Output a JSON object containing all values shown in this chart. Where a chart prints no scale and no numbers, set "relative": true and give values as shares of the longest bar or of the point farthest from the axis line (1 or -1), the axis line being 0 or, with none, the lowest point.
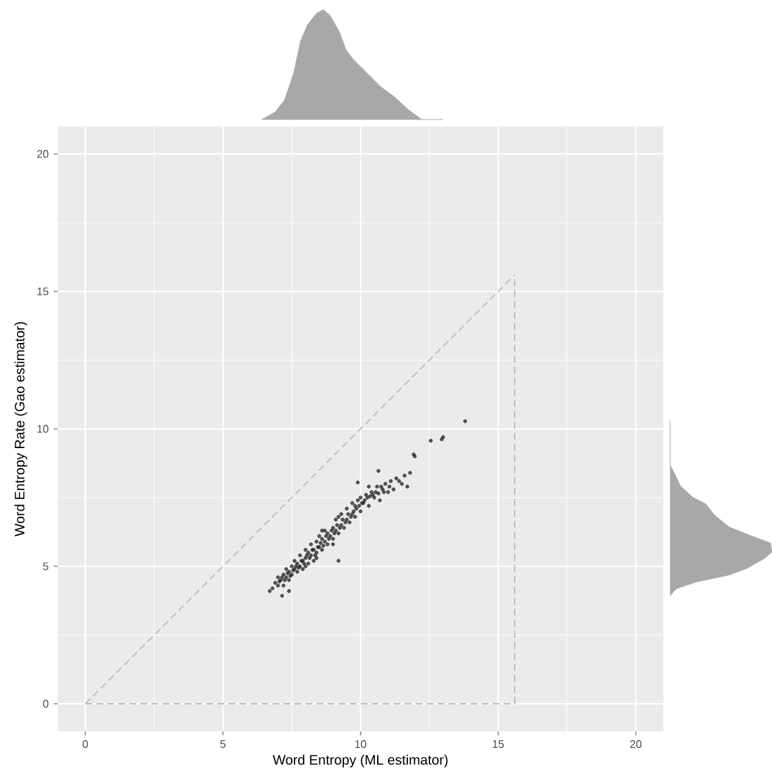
{
  "chart_data": [
    {
      "type": "scatter",
      "xlabel": "Word Entropy (ML estimator)",
      "ylabel": "Word Entropy Rate (Gao estimator)",
      "xlim": [
        -1,
        21
      ],
      "ylim": [
        -1,
        21
      ],
      "xticks": [
        0,
        5,
        10,
        15,
        20
      ],
      "yticks": [
        0,
        5,
        10,
        15,
        20
      ],
      "grid": true,
      "series": [
        {
          "color": "#222222",
          "marker": "circle",
          "x": [
            6.8,
            6.9,
            7.0,
            7.0,
            7.1,
            7.2,
            7.2,
            7.3,
            7.3,
            7.4,
            7.4,
            7.5,
            7.5,
            7.6,
            7.6,
            7.7,
            7.7,
            7.8,
            7.8,
            7.9,
            7.9,
            8.0,
            8.0,
            8.1,
            8.1,
            8.2,
            8.2,
            8.3,
            8.3,
            8.4,
            8.4,
            8.5,
            8.5,
            8.6,
            8.6,
            8.7,
            8.7,
            8.8,
            8.8,
            8.9,
            9.0,
            9.0,
            9.1,
            9.1,
            9.2,
            9.3,
            9.3,
            9.4,
            9.5,
            9.5,
            9.6,
            9.7,
            9.8,
            9.8,
            9.9,
            10.0,
            10.0,
            10.1,
            10.2,
            10.3,
            10.4,
            10.5,
            10.6,
            10.7,
            10.8,
            10.9,
            11.0,
            11.1,
            11.2,
            11.3,
            11.5,
            11.6,
            11.7,
            11.8,
            9.2,
            7.4,
            6.7,
            7.15,
            9.9,
            10.65,
            11.93,
            11.97,
            12.55,
            12.95,
            13.0,
            13.8,
            7.05,
            7.15,
            7.25,
            7.35,
            7.45,
            7.55,
            7.65,
            7.75,
            7.85,
            7.95,
            8.05,
            8.15,
            8.25,
            8.35,
            8.45,
            8.55,
            8.65,
            8.75,
            8.85,
            8.95,
            9.05,
            9.15,
            9.25,
            9.35,
            9.45,
            9.55,
            9.65,
            9.75,
            9.85,
            9.95,
            10.05,
            10.15,
            10.25,
            10.35,
            10.45,
            10.55,
            10.65,
            10.75,
            10.85,
            11.05,
            11.4,
            8.0,
            8.6,
            9.2,
            9.7,
            10.3,
            8.4,
            9.0
          ],
          "values": [
            4.2,
            4.4,
            4.3,
            4.6,
            4.5,
            4.3,
            4.7,
            4.6,
            4.9,
            4.5,
            4.8,
            4.7,
            5.0,
            4.9,
            5.2,
            4.8,
            5.1,
            5.0,
            5.4,
            5.2,
            4.9,
            5.3,
            5.6,
            5.1,
            5.5,
            5.4,
            5.8,
            5.6,
            5.2,
            5.5,
            5.9,
            5.7,
            6.1,
            5.6,
            6.0,
            5.9,
            6.3,
            5.8,
            6.2,
            6.1,
            6.0,
            6.4,
            6.3,
            6.7,
            6.2,
            6.5,
            6.9,
            6.4,
            6.7,
            7.1,
            6.6,
            6.9,
            7.2,
            6.8,
            7.4,
            7.0,
            7.5,
            7.3,
            7.6,
            7.2,
            7.7,
            7.5,
            7.9,
            7.4,
            7.8,
            8.0,
            7.7,
            8.1,
            7.8,
            8.2,
            8.0,
            8.3,
            7.9,
            8.4,
            5.2,
            4.1,
            4.1,
            3.93,
            8.05,
            8.47,
            9.07,
            9.0,
            9.57,
            9.62,
            9.7,
            10.28,
            4.45,
            4.6,
            4.5,
            4.75,
            4.65,
            4.85,
            5.0,
            4.95,
            5.2,
            5.1,
            5.4,
            5.3,
            5.6,
            5.4,
            5.7,
            5.85,
            5.75,
            6.1,
            6.0,
            6.3,
            6.2,
            6.5,
            6.4,
            6.7,
            6.6,
            6.9,
            6.8,
            7.0,
            7.1,
            7.2,
            7.3,
            7.4,
            7.5,
            7.55,
            7.6,
            7.7,
            7.65,
            7.9,
            7.7,
            7.9,
            8.1,
            5.0,
            6.3,
            6.8,
            7.3,
            7.9,
            5.3,
            5.8
          ]
        },
        {
          "type": "line",
          "line_style": "dashed",
          "marker": "none",
          "color": "#bebebe",
          "x": [
            0,
            15.6
          ],
          "values": [
            0,
            15.6
          ]
        },
        {
          "type": "line",
          "line_style": "dashed",
          "marker": "none",
          "color": "#bebebe",
          "x": [
            0,
            15.6,
            15.6
          ],
          "values": [
            0,
            0,
            15.6
          ]
        }
      ]
    },
    {
      "type": "area",
      "relative": true,
      "color": "#a8a8a8",
      "tick_labels": false,
      "xlim": [
        0,
        20
      ],
      "xticks": [
        0,
        5,
        10,
        15,
        20
      ],
      "x": [
        6.4,
        6.9,
        7.23,
        7.57,
        7.82,
        8.07,
        8.4,
        8.65,
        8.9,
        9.23,
        9.48,
        9.73,
        10.23,
        10.73,
        11.23,
        11.73,
        12.23,
        13.0
      ],
      "values": [
        0,
        0.07,
        0.175,
        0.425,
        0.717,
        0.863,
        0.967,
        1,
        0.946,
        0.8,
        0.633,
        0.55,
        0.425,
        0.3,
        0.208,
        0.092,
        0,
        0
      ]
    },
    {
      "type": "area",
      "relative": true,
      "orientation": "horizontal",
      "color": "#a8a8a8",
      "tick_labels": false,
      "ylim": [
        0,
        20
      ],
      "yticks": [
        0,
        5,
        10,
        15,
        20
      ],
      "x": [
        3.93,
        4.18,
        4.43,
        4.68,
        4.93,
        5.27,
        5.52,
        5.85,
        6.1,
        6.43,
        6.85,
        7.27,
        7.52,
        7.93,
        8.43,
        8.68,
        10.3
      ],
      "values": [
        0,
        0.06,
        0.26,
        0.58,
        0.76,
        0.92,
        1,
        0.986,
        0.805,
        0.58,
        0.44,
        0.35,
        0.22,
        0.1,
        0.036,
        0,
        0
      ]
    }
  ]
}
